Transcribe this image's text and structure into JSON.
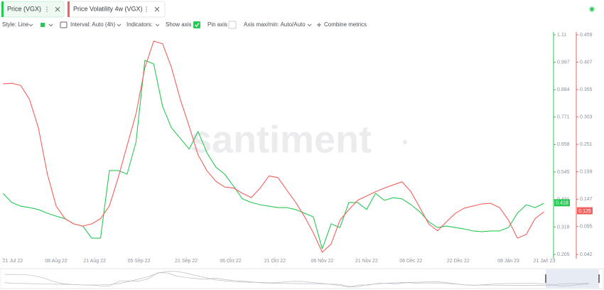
{
  "tabs": [
    {
      "label": "Price (VGX)"
    },
    {
      "label": "Price Volatility 4w (VGX)"
    }
  ],
  "toolbar": {
    "style": "Style: Line",
    "interval": "Interval: Auto (4h)",
    "indicators": "Indicators:",
    "show_axis": "Show axis",
    "pin_axis": "Pin axis",
    "axis_minmax": "Axis max/min: Auto/Auto",
    "combine": "Combine metrics"
  },
  "chart_data": {
    "type": "line",
    "watermark": "santiment",
    "xlim": [
      -1,
      186
    ],
    "xticks": [
      {
        "value": 0,
        "label": "21 Jul 22"
      },
      {
        "value": 18,
        "label": "08 Aug 22"
      },
      {
        "value": 31,
        "label": "21 Aug 22"
      },
      {
        "value": 46,
        "label": "05 Sep 22"
      },
      {
        "value": 62,
        "label": "21 Sep 22"
      },
      {
        "value": 77,
        "label": "06 Oct 22"
      },
      {
        "value": 92,
        "label": "21 Oct 22"
      },
      {
        "value": 108,
        "label": "06 Nov 22"
      },
      {
        "value": 123,
        "label": "21 Nov 22"
      },
      {
        "value": 138,
        "label": "06 Dec 22"
      },
      {
        "value": 154,
        "label": "22 Dec 22"
      },
      {
        "value": 171,
        "label": "08 Jan 23"
      },
      {
        "value": 184,
        "label": "21 Jan 23"
      }
    ],
    "x": [
      0,
      3,
      6,
      9,
      12,
      15,
      18,
      21,
      24,
      27,
      30,
      33,
      36,
      39,
      42,
      45,
      48,
      51,
      54,
      57,
      60,
      63,
      66,
      69,
      72,
      75,
      78,
      81,
      84,
      87,
      90,
      93,
      96,
      99,
      102,
      105,
      108,
      111,
      114,
      117,
      120,
      123,
      126,
      129,
      132,
      135,
      138,
      141,
      144,
      147,
      150,
      153,
      156,
      159,
      162,
      165,
      168,
      171,
      174,
      177,
      180,
      183
    ],
    "ylim": [
      0.205,
      1.11
    ],
    "yticks": [
      0.205,
      0.318,
      0.431,
      0.545,
      0.658,
      0.771,
      0.884,
      0.997,
      1.11
    ],
    "y2lim": [
      0.042,
      0.459
    ],
    "y2ticks": [
      0.042,
      0.095,
      0.147,
      0.199,
      0.251,
      0.303,
      0.355,
      0.407,
      0.459
    ],
    "series": [
      {
        "name": "Price (VGX)",
        "color": "#26c953",
        "axis": "y",
        "current_value": 0.418,
        "values": [
          0.457,
          0.419,
          0.404,
          0.398,
          0.39,
          0.375,
          0.363,
          0.352,
          0.331,
          0.322,
          0.272,
          0.272,
          0.551,
          0.551,
          0.536,
          0.668,
          1.005,
          0.99,
          0.815,
          0.727,
          0.683,
          0.639,
          0.712,
          0.624,
          0.565,
          0.536,
          0.486,
          0.434,
          0.419,
          0.41,
          0.404,
          0.398,
          0.398,
          0.39,
          0.375,
          0.36,
          0.228,
          0.331,
          0.316,
          0.419,
          0.419,
          0.39,
          0.457,
          0.428,
          0.439,
          0.434,
          0.41,
          0.381,
          0.34,
          0.316,
          0.322,
          0.316,
          0.31,
          0.302,
          0.299,
          0.302,
          0.302,
          0.316,
          0.375,
          0.41,
          0.398,
          0.416
        ]
      },
      {
        "name": "Price Volatility 4w (VGX)",
        "color": "#f2615d",
        "axis": "y2",
        "current_value": 0.125,
        "values": [
          0.366,
          0.367,
          0.363,
          0.336,
          0.282,
          0.195,
          0.134,
          0.11,
          0.1,
          0.096,
          0.1,
          0.11,
          0.134,
          0.188,
          0.249,
          0.309,
          0.397,
          0.447,
          0.442,
          0.397,
          0.336,
          0.285,
          0.231,
          0.201,
          0.181,
          0.17,
          0.168,
          0.158,
          0.15,
          0.168,
          0.191,
          0.188,
          0.164,
          0.141,
          0.114,
          0.083,
          0.046,
          0.062,
          0.107,
          0.127,
          0.145,
          0.153,
          0.161,
          0.168,
          0.174,
          0.18,
          0.161,
          0.131,
          0.1,
          0.087,
          0.104,
          0.12,
          0.13,
          0.134,
          0.138,
          0.139,
          0.131,
          0.107,
          0.073,
          0.08,
          0.11,
          0.123
        ]
      }
    ]
  }
}
